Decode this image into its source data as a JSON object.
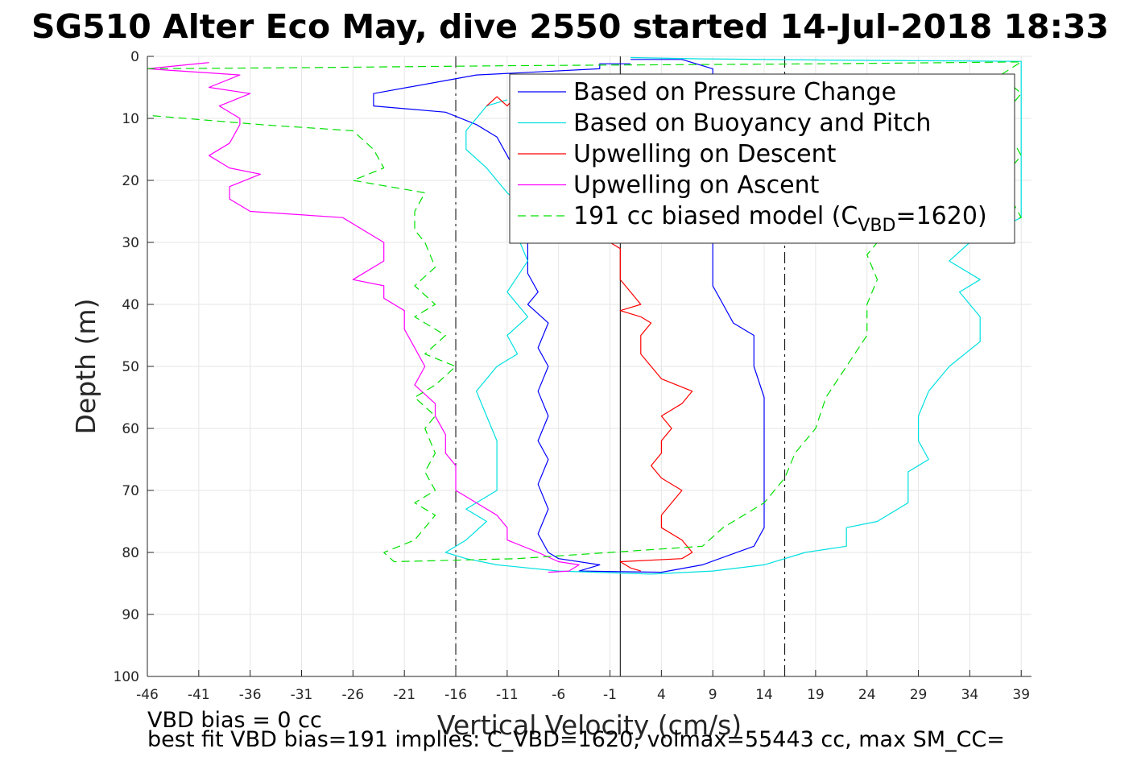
{
  "chart_data": {
    "type": "line",
    "title": "SG510 Alter Eco May, dive 2550 started 14-Jul-2018 18:33",
    "xlabel": "Vertical Velocity (cm/s)",
    "ylabel": "Depth (m)",
    "xlim": [
      -46,
      40
    ],
    "ylim": [
      0,
      100
    ],
    "y_reversed": true,
    "grid": true,
    "xticks": [
      "-46",
      "-41",
      "-36",
      "-31",
      "-26",
      "-21",
      "-16",
      "-11",
      "-6",
      "-1",
      "4",
      "9",
      "14",
      "19",
      "24",
      "29",
      "34",
      "39"
    ],
    "yticks": [
      "0",
      "10",
      "20",
      "30",
      "40",
      "50",
      "60",
      "70",
      "80",
      "90",
      "100"
    ],
    "vertical_lines": [
      {
        "x": -16,
        "style": "dashdot"
      },
      {
        "x": 0,
        "style": "solid"
      },
      {
        "x": 16,
        "style": "dashdot"
      }
    ],
    "legend": {
      "position": "top-right"
    },
    "series": [
      {
        "name": "Based on Pressure Change",
        "color": "#0000ff",
        "dash": "none",
        "points": [
          [
            1,
            1.2
          ],
          [
            -2,
            1.2
          ],
          [
            -2,
            2
          ],
          [
            -14,
            3
          ],
          [
            -24,
            6
          ],
          [
            -24,
            8
          ],
          [
            -17,
            9
          ],
          [
            -14,
            11
          ],
          [
            -12,
            13
          ],
          [
            -11,
            16
          ],
          [
            -10,
            19
          ],
          [
            -9,
            23
          ],
          [
            -10,
            26
          ],
          [
            -9,
            30
          ],
          [
            -9,
            35
          ],
          [
            -8,
            38
          ],
          [
            -9,
            40
          ],
          [
            -7,
            43
          ],
          [
            -8,
            47
          ],
          [
            -7,
            50
          ],
          [
            -8,
            54
          ],
          [
            -7,
            58
          ],
          [
            -8,
            62
          ],
          [
            -7,
            65
          ],
          [
            -8,
            69
          ],
          [
            -7,
            73
          ],
          [
            -8,
            77
          ],
          [
            -7,
            80
          ],
          [
            -6,
            81
          ],
          [
            -2,
            82
          ],
          [
            -4,
            83
          ],
          [
            4,
            83.2
          ],
          [
            8,
            82
          ],
          [
            13,
            79
          ],
          [
            14,
            76
          ],
          [
            14,
            70
          ],
          [
            14,
            62
          ],
          [
            14,
            55
          ],
          [
            13,
            50
          ],
          [
            13,
            45
          ],
          [
            11,
            43
          ],
          [
            10,
            40
          ],
          [
            9,
            37
          ],
          [
            9,
            33
          ],
          [
            9,
            30
          ],
          [
            9,
            25
          ],
          [
            9,
            20
          ],
          [
            9,
            15
          ],
          [
            9,
            10
          ],
          [
            9,
            5
          ],
          [
            9,
            2
          ],
          [
            6,
            0.5
          ],
          [
            1,
            0.5
          ]
        ]
      },
      {
        "name": "Based on Buoyancy and Pitch",
        "color": "#00e0e0",
        "dash": "none",
        "points": [
          [
            1,
            0.2
          ],
          [
            8,
            0.4
          ],
          [
            20,
            0.6
          ],
          [
            39,
            0.8
          ],
          [
            39,
            2
          ],
          [
            39,
            6
          ],
          [
            39,
            10
          ],
          [
            39,
            20
          ],
          [
            39,
            26
          ],
          [
            34,
            30
          ],
          [
            32,
            33
          ],
          [
            35,
            36
          ],
          [
            33,
            38
          ],
          [
            35,
            42
          ],
          [
            35,
            46
          ],
          [
            32,
            50
          ],
          [
            30,
            54
          ],
          [
            29,
            58
          ],
          [
            29,
            62
          ],
          [
            30,
            65
          ],
          [
            28,
            67
          ],
          [
            28,
            72
          ],
          [
            25,
            75
          ],
          [
            22,
            76
          ],
          [
            22,
            79
          ],
          [
            18,
            80
          ],
          [
            14,
            82
          ],
          [
            9,
            83
          ],
          [
            3,
            83.5
          ],
          [
            -6,
            83
          ],
          [
            -12,
            82
          ],
          [
            -15,
            81
          ],
          [
            -17,
            80
          ],
          [
            -15,
            78
          ],
          [
            -13,
            75
          ],
          [
            -15,
            73
          ],
          [
            -12,
            70
          ],
          [
            -12,
            66
          ],
          [
            -12,
            62
          ],
          [
            -13,
            58
          ],
          [
            -14,
            54
          ],
          [
            -12,
            50
          ],
          [
            -10,
            48
          ],
          [
            -11,
            45
          ],
          [
            -9,
            42
          ],
          [
            -11,
            38
          ],
          [
            -9,
            33
          ],
          [
            -10,
            29
          ],
          [
            -9,
            25
          ],
          [
            -11,
            22
          ],
          [
            -13,
            18
          ],
          [
            -15,
            15
          ],
          [
            -15,
            12
          ],
          [
            -14,
            10
          ],
          [
            -13,
            8
          ],
          [
            -11,
            7
          ]
        ]
      },
      {
        "name": "Upwelling on Descent",
        "color": "#ff0000",
        "dash": "none",
        "points": [
          [
            -13,
            8
          ],
          [
            -12,
            6.5
          ],
          [
            -11,
            8
          ],
          [
            -10,
            6
          ],
          [
            -1,
            30
          ],
          [
            0,
            31
          ],
          [
            0,
            33
          ],
          [
            0,
            36
          ],
          [
            1,
            38
          ],
          [
            2,
            40
          ],
          [
            0,
            41
          ],
          [
            2,
            42
          ],
          [
            3,
            43
          ],
          [
            2,
            45
          ],
          [
            2,
            48
          ],
          [
            3,
            50
          ],
          [
            4,
            52
          ],
          [
            7,
            54
          ],
          [
            6,
            56
          ],
          [
            4,
            58
          ],
          [
            5,
            60
          ],
          [
            4,
            62
          ],
          [
            4,
            64
          ],
          [
            3,
            66
          ],
          [
            4,
            68
          ],
          [
            6,
            70
          ],
          [
            5,
            72
          ],
          [
            4,
            74
          ],
          [
            4,
            76
          ],
          [
            6,
            78
          ],
          [
            7,
            80
          ],
          [
            6,
            81
          ],
          [
            0,
            81.5
          ],
          [
            1,
            82.5
          ],
          [
            2,
            83
          ]
        ]
      },
      {
        "name": "Upwelling on Ascent",
        "color": "#ff00ff",
        "dash": "none",
        "points": [
          [
            -40,
            1
          ],
          [
            -46,
            2
          ],
          [
            -37,
            3
          ],
          [
            -40,
            5
          ],
          [
            -36,
            6
          ],
          [
            -39,
            8
          ],
          [
            -37,
            10
          ],
          [
            -37,
            11
          ],
          [
            -38,
            14
          ],
          [
            -40,
            16
          ],
          [
            -38,
            18
          ],
          [
            -35,
            19
          ],
          [
            -38,
            21
          ],
          [
            -38,
            23
          ],
          [
            -36,
            25
          ],
          [
            -27,
            26
          ],
          [
            -25,
            28
          ],
          [
            -23,
            30
          ],
          [
            -23,
            33
          ],
          [
            -26,
            36
          ],
          [
            -23,
            37
          ],
          [
            -23,
            39
          ],
          [
            -21,
            41
          ],
          [
            -21,
            44
          ],
          [
            -20,
            47
          ],
          [
            -19,
            50
          ],
          [
            -20,
            53
          ],
          [
            -18,
            56
          ],
          [
            -18,
            58
          ],
          [
            -17,
            61
          ],
          [
            -17,
            64
          ],
          [
            -16,
            66
          ],
          [
            -16,
            70
          ],
          [
            -14,
            72
          ],
          [
            -12,
            74
          ],
          [
            -11,
            76
          ],
          [
            -11,
            78
          ],
          [
            -8,
            80
          ],
          [
            -6,
            81.5
          ],
          [
            -4,
            82
          ],
          [
            -5,
            83
          ],
          [
            -7,
            83.2
          ]
        ]
      },
      {
        "name": "191 cc biased model (C_VBD=1620)",
        "color": "#00e000",
        "dash": "dashed",
        "points": [
          [
            -46,
            2
          ],
          [
            -30,
            1.8
          ],
          [
            -10,
            1.5
          ],
          [
            20,
            1.2
          ],
          [
            39,
            0.9
          ],
          [
            37,
            3
          ],
          [
            39,
            6
          ],
          [
            37,
            10
          ],
          [
            39,
            16
          ],
          [
            37,
            20
          ],
          [
            39,
            26
          ],
          [
            26,
            28
          ],
          [
            24,
            32
          ],
          [
            25,
            36
          ],
          [
            24,
            40
          ],
          [
            24,
            45
          ],
          [
            22,
            50
          ],
          [
            20,
            55
          ],
          [
            19,
            60
          ],
          [
            17,
            64
          ],
          [
            16,
            68
          ],
          [
            14,
            72
          ],
          [
            10,
            76
          ],
          [
            8,
            79
          ],
          [
            -10,
            81
          ],
          [
            -22,
            81.5
          ],
          [
            -23,
            80
          ],
          [
            -20,
            78
          ],
          [
            -19,
            76
          ],
          [
            -18,
            74
          ],
          [
            -20,
            72
          ],
          [
            -18,
            70
          ],
          [
            -19,
            67
          ],
          [
            -18,
            64
          ],
          [
            -19,
            60
          ],
          [
            -18,
            58
          ],
          [
            -20,
            55
          ],
          [
            -18,
            53
          ],
          [
            -16,
            50
          ],
          [
            -19,
            48
          ],
          [
            -17,
            45
          ],
          [
            -20,
            42
          ],
          [
            -18,
            40
          ],
          [
            -20,
            37
          ],
          [
            -18,
            34
          ],
          [
            -19,
            30
          ],
          [
            -20,
            28
          ],
          [
            -20,
            25
          ],
          [
            -19,
            22
          ],
          [
            -26,
            20
          ],
          [
            -23,
            18
          ],
          [
            -24,
            15
          ],
          [
            -26,
            12
          ],
          [
            -35,
            11
          ],
          [
            -46,
            9.5
          ]
        ]
      }
    ]
  },
  "footnotes": {
    "line1": "VBD bias = 0 cc",
    "line2": "best fit VBD bias=191 implies: C_VBD=1620, volmax=55443 cc, max SM_CC=",
    "line3": ""
  }
}
